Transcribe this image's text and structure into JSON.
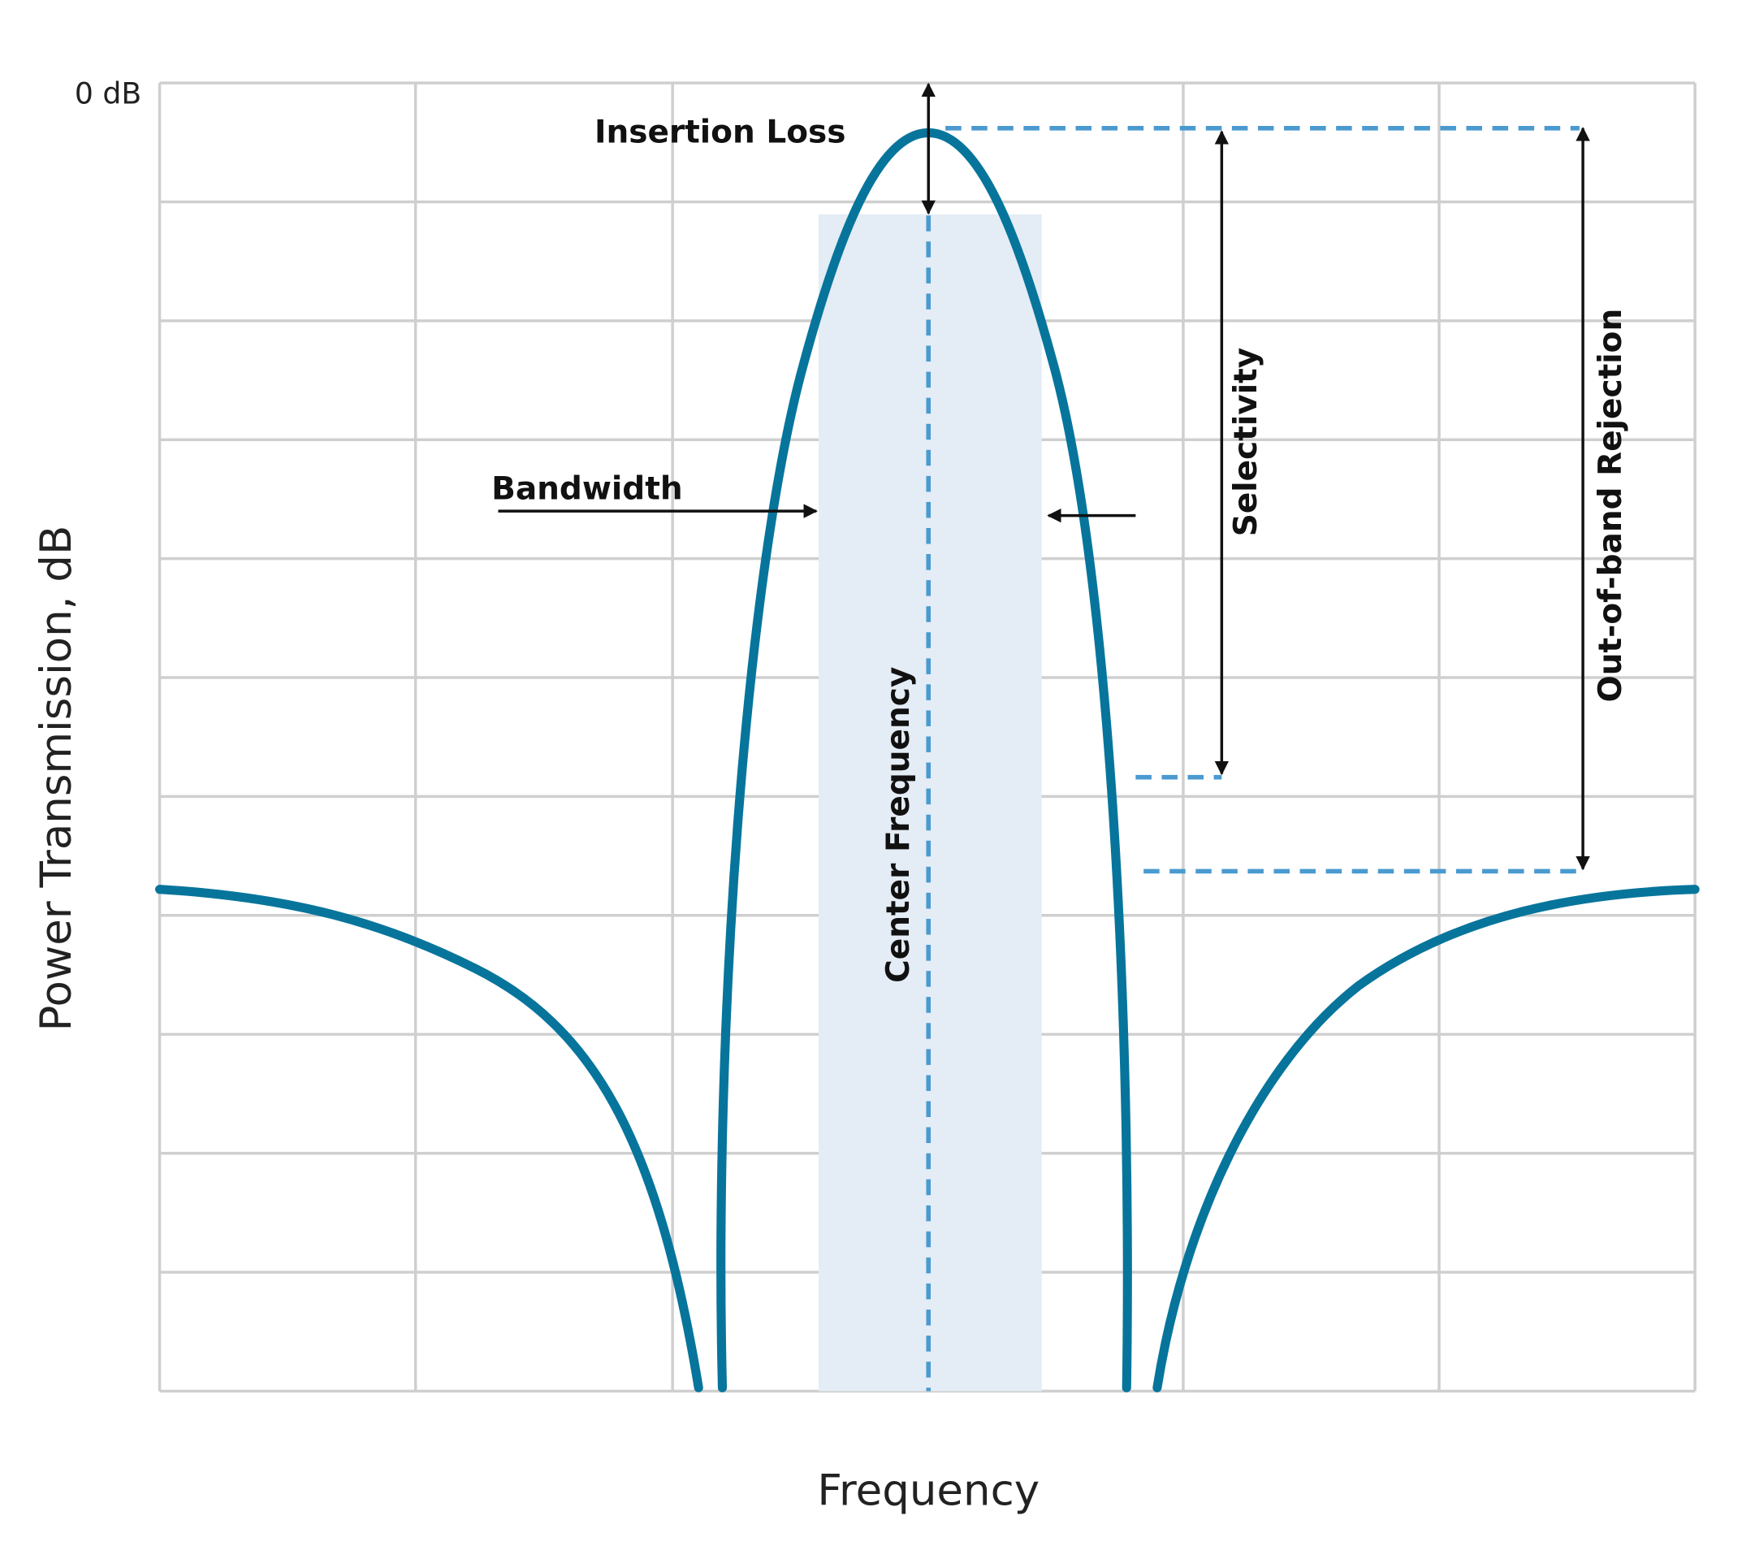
{
  "axes": {
    "y_label": "Power Transmission, dB",
    "x_label": "Frequency",
    "y_top_tick": "0 dB"
  },
  "annotations": {
    "insertion_loss": "Insertion Loss",
    "bandwidth": "Bandwidth",
    "selectivity": "Selectivity",
    "out_of_band_rejection": "Out-of-band Rejection",
    "center_frequency": "Center Frequency"
  }
}
